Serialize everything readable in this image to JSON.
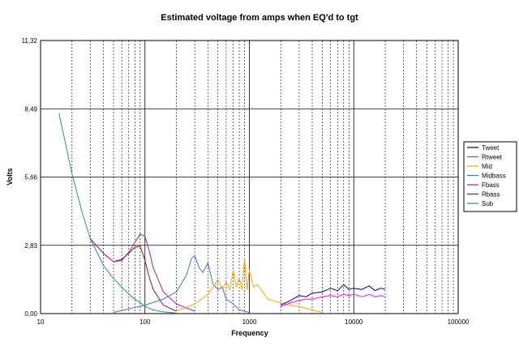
{
  "chart_data": {
    "type": "line",
    "title": "Estimated voltage from amps when EQ'd to tgt",
    "xlabel": "Frequency",
    "ylabel": "Volts",
    "x_scale": "log",
    "xlim": [
      10,
      100000
    ],
    "ylim": [
      0,
      11.32
    ],
    "x_ticks": [
      10,
      100,
      1000,
      10000,
      100000
    ],
    "x_tick_labels": [
      "10",
      "100",
      "1000",
      "10000",
      "100000"
    ],
    "y_ticks": [
      0,
      2.83,
      5.66,
      8.49,
      11.32
    ],
    "y_tick_labels": [
      "0,00",
      "2,83",
      "5,66",
      "8,49",
      "11,32"
    ],
    "grid": true,
    "legend_position": "right",
    "series": [
      {
        "name": "Tweet",
        "color": "#000080",
        "x": [
          2000,
          2500,
          3000,
          3500,
          4000,
          5000,
          6000,
          7000,
          8000,
          9000,
          10000,
          12000,
          14000,
          16000,
          18000,
          20000
        ],
        "y": [
          0.35,
          0.55,
          0.75,
          0.7,
          0.85,
          0.9,
          1.05,
          0.95,
          1.2,
          1.0,
          1.05,
          1.0,
          1.15,
          0.95,
          1.05,
          1.0
        ]
      },
      {
        "name": "Rtweet",
        "color": "#ff00ff",
        "x": [
          2000,
          2500,
          3000,
          3500,
          4000,
          5000,
          6000,
          7000,
          8000,
          9000,
          10000,
          12000,
          14000,
          16000,
          18000,
          20000
        ],
        "y": [
          0.3,
          0.45,
          0.55,
          0.6,
          0.6,
          0.7,
          0.75,
          0.7,
          0.8,
          0.75,
          0.8,
          0.7,
          0.8,
          0.7,
          0.75,
          0.7
        ]
      },
      {
        "name": "Mid",
        "color": "#ffa500",
        "x": [
          200,
          300,
          400,
          450,
          500,
          550,
          600,
          650,
          700,
          750,
          800,
          850,
          900,
          950,
          1000,
          1100,
          1200,
          1500,
          2000,
          2500,
          3000,
          4000,
          5000
        ],
        "y": [
          0.1,
          0.4,
          0.8,
          1.1,
          1.4,
          1.0,
          1.3,
          1.0,
          1.8,
          1.1,
          1.5,
          1.0,
          2.3,
          1.0,
          1.8,
          1.1,
          1.2,
          0.6,
          0.45,
          0.35,
          0.3,
          0.15,
          0.05
        ]
      },
      {
        "name": "Midbass",
        "color": "#4472c4",
        "x": [
          50,
          100,
          150,
          200,
          250,
          280,
          300,
          330,
          360,
          400,
          450,
          500,
          550,
          600,
          700,
          800,
          1000
        ],
        "y": [
          0.05,
          0.35,
          0.6,
          0.9,
          1.6,
          2.3,
          2.4,
          1.9,
          1.7,
          2.1,
          1.2,
          1.0,
          1.1,
          0.6,
          0.4,
          0.15,
          0.05
        ]
      },
      {
        "name": "Fbass",
        "color": "#a020a0",
        "x": [
          30,
          40,
          50,
          60,
          70,
          80,
          90,
          100,
          110,
          120,
          150,
          200,
          300
        ],
        "y": [
          3.1,
          2.5,
          2.15,
          2.2,
          2.55,
          2.95,
          3.3,
          3.2,
          2.6,
          1.9,
          0.9,
          0.4,
          0.1
        ]
      },
      {
        "name": "Rbass",
        "color": "#8b1a1a",
        "x": [
          30,
          40,
          50,
          60,
          70,
          80,
          90,
          100,
          110,
          120,
          150,
          200
        ],
        "y": [
          3.1,
          2.5,
          2.15,
          2.25,
          2.5,
          2.75,
          2.8,
          2.2,
          1.5,
          1.0,
          0.35,
          0.1
        ]
      },
      {
        "name": "Sub",
        "color": "#2e8b8b",
        "x": [
          15,
          20,
          25,
          30,
          40,
          50,
          60,
          70,
          80,
          90,
          100,
          120,
          150,
          200
        ],
        "y": [
          8.3,
          5.8,
          4.2,
          3.1,
          2.0,
          1.45,
          1.1,
          0.8,
          0.6,
          0.45,
          0.3,
          0.15,
          0.07,
          0.02
        ]
      }
    ]
  }
}
